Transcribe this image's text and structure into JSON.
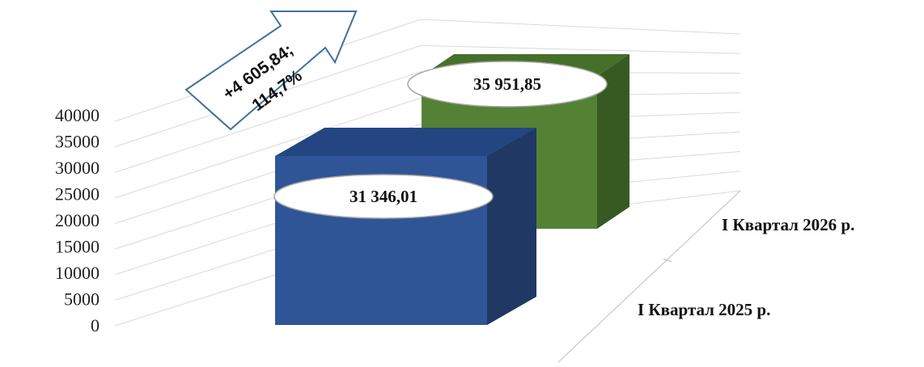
{
  "chart_data": {
    "type": "bar",
    "categories": [
      "I Квартал 2025 р.",
      "I Квартал 2026 р."
    ],
    "values": [
      31346.01,
      35951.85
    ],
    "data_labels": [
      "31 346,01",
      "35 951,85"
    ],
    "y_ticks": [
      "0",
      "5000",
      "10000",
      "15000",
      "20000",
      "25000",
      "30000",
      "35000",
      "40000"
    ],
    "ylim": [
      0,
      40000
    ],
    "grid": true,
    "annotation": {
      "line1": "+4 605,84;",
      "line2": "114,7%"
    },
    "colors": {
      "series_2025": "#2f5597",
      "series_2026": "#548235"
    }
  }
}
